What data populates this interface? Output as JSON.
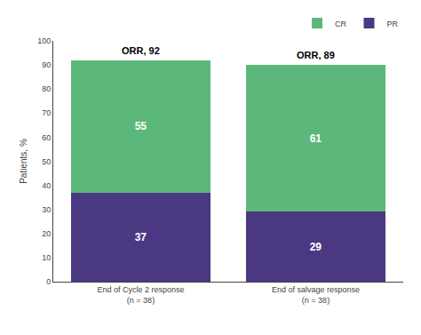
{
  "chart_data": {
    "type": "bar",
    "stacked": true,
    "categories": [
      "End of Cycle 2 response\n(n = 38)",
      "End of salvage response\n(n = 38)"
    ],
    "series": [
      {
        "name": "PR",
        "color": "#4b3882",
        "values": [
          37,
          29
        ]
      },
      {
        "name": "CR",
        "color": "#5cb87a",
        "values": [
          55,
          61
        ]
      }
    ],
    "annotations": [
      "ORR, 92",
      "ORR, 89"
    ],
    "ylabel": "Patients, %",
    "ylim": [
      0,
      100
    ],
    "yticks": [
      0,
      10,
      20,
      30,
      40,
      50,
      60,
      70,
      80,
      90,
      100
    ],
    "data_labels": true,
    "legend": "upper right",
    "grid": false
  }
}
